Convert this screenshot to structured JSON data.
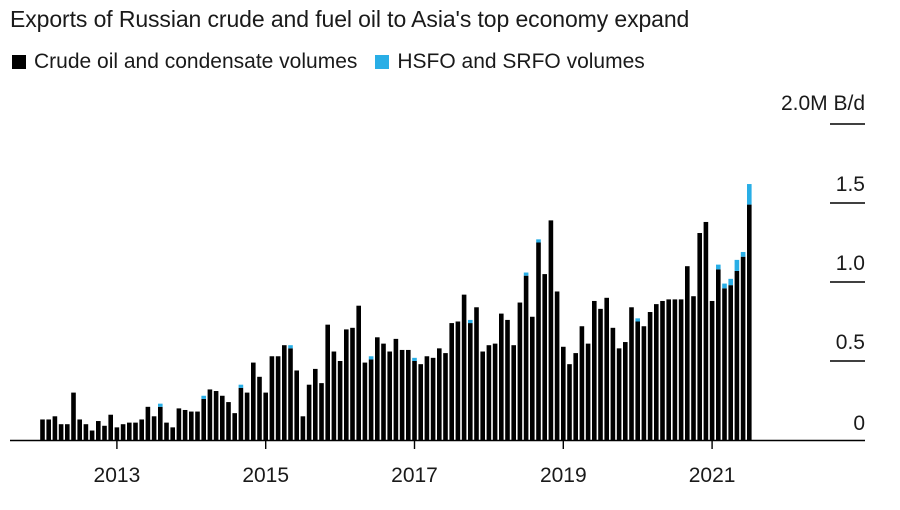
{
  "title": "Exports of Russian crude and fuel oil to Asia's top economy expand",
  "legend": [
    {
      "label": "Crude oil and condensate volumes",
      "color": "#000000"
    },
    {
      "label": "HSFO and SRFO volumes",
      "color": "#29aee6"
    }
  ],
  "chart_data": {
    "type": "bar",
    "stacked": true,
    "y_unit_label": "2.0M B/d",
    "ylim": [
      0,
      2.0
    ],
    "yticks": [
      {
        "value": 0,
        "label": "0"
      },
      {
        "value": 0.5,
        "label": "0.5"
      },
      {
        "value": 1.0,
        "label": "1.0"
      },
      {
        "value": 1.5,
        "label": "1.5"
      },
      {
        "value": 2.0,
        "label": ""
      }
    ],
    "x_start": "2012-01",
    "xticks": [
      "2013",
      "2015",
      "2017",
      "2019",
      "2021"
    ],
    "series": [
      {
        "name": "Crude oil and condensate volumes",
        "color": "#000000",
        "values": [
          0.13,
          0.13,
          0.15,
          0.1,
          0.1,
          0.3,
          0.13,
          0.1,
          0.06,
          0.12,
          0.09,
          0.16,
          0.08,
          0.1,
          0.11,
          0.11,
          0.13,
          0.21,
          0.15,
          0.21,
          0.11,
          0.08,
          0.2,
          0.19,
          0.18,
          0.18,
          0.26,
          0.32,
          0.31,
          0.28,
          0.24,
          0.17,
          0.33,
          0.3,
          0.49,
          0.4,
          0.3,
          0.53,
          0.53,
          0.6,
          0.58,
          0.44,
          0.15,
          0.35,
          0.45,
          0.36,
          0.73,
          0.56,
          0.5,
          0.7,
          0.71,
          0.85,
          0.49,
          0.51,
          0.65,
          0.61,
          0.56,
          0.64,
          0.57,
          0.57,
          0.5,
          0.48,
          0.53,
          0.52,
          0.58,
          0.55,
          0.74,
          0.75,
          0.92,
          0.74,
          0.84,
          0.56,
          0.6,
          0.61,
          0.8,
          0.76,
          0.6,
          0.87,
          1.04,
          0.78,
          1.25,
          1.05,
          1.39,
          0.94,
          0.59,
          0.48,
          0.55,
          0.72,
          0.61,
          0.88,
          0.83,
          0.9,
          0.71,
          0.58,
          0.62,
          0.84,
          0.75,
          0.72,
          0.81,
          0.86,
          0.88,
          0.89,
          0.89,
          0.89,
          1.1,
          0.91,
          1.31,
          1.38,
          0.88,
          1.08,
          0.96,
          0.98,
          1.07,
          1.16,
          1.49
        ],
        "pixel_note": ""
      },
      {
        "name": "HSFO and SRFO volumes",
        "color": "#29aee6",
        "values": [
          0,
          0,
          0,
          0,
          0,
          0,
          0,
          0,
          0,
          0,
          0,
          0,
          0,
          0,
          0,
          0,
          0,
          0,
          0,
          0.02,
          0,
          0,
          0,
          0,
          0,
          0,
          0.02,
          0,
          0,
          0,
          0,
          0,
          0.02,
          0,
          0,
          0,
          0,
          0,
          0,
          0,
          0.02,
          0,
          0,
          0,
          0,
          0,
          0,
          0,
          0,
          0,
          0,
          0,
          0,
          0.02,
          0,
          0,
          0,
          0,
          0,
          0,
          0.02,
          0,
          0,
          0,
          0,
          0,
          0,
          0,
          0,
          0.02,
          0,
          0,
          0,
          0,
          0,
          0,
          0,
          0,
          0.02,
          0,
          0.02,
          0,
          0,
          0,
          0,
          0,
          0,
          0,
          0,
          0,
          0,
          0,
          0,
          0,
          0,
          0,
          0.02,
          0,
          0,
          0,
          0,
          0,
          0,
          0,
          0,
          0,
          0,
          0,
          0,
          0.03,
          0.03,
          0.04,
          0.07,
          0.03,
          0.13
        ]
      }
    ]
  }
}
